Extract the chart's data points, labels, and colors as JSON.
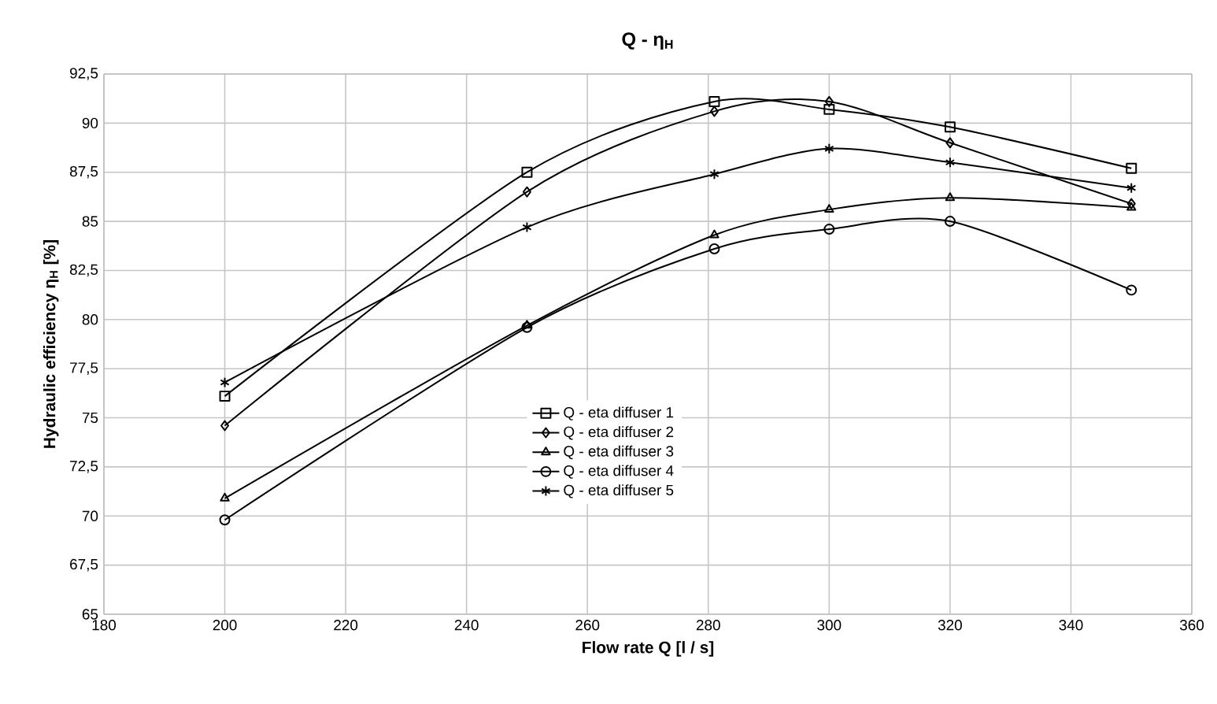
{
  "chart_data": {
    "type": "line",
    "title": "Q - η$_{H}$",
    "xlabel": "Flow rate Q  [l / s]",
    "ylabel": "Hydraulic efficiency η$_{H}$  [%]",
    "x": [
      200,
      250,
      281,
      300,
      320,
      350
    ],
    "series": [
      {
        "name": "Q - eta diffuser 1",
        "color": "#000000",
        "marker": "square",
        "values": [
          76.1,
          87.5,
          91.1,
          90.7,
          89.8,
          87.7
        ]
      },
      {
        "name": "Q - eta diffuser 2",
        "color": "#000000",
        "marker": "diamond",
        "values": [
          74.6,
          86.5,
          90.6,
          91.1,
          89.0,
          85.9
        ]
      },
      {
        "name": "Q - eta diffuser 3",
        "color": "#000000",
        "marker": "triangle",
        "values": [
          70.9,
          79.7,
          84.3,
          85.6,
          86.2,
          85.7
        ]
      },
      {
        "name": "Q - eta diffuser 4",
        "color": "#000000",
        "marker": "circle",
        "values": [
          69.8,
          79.6,
          83.6,
          84.6,
          85.0,
          81.5
        ]
      },
      {
        "name": "Q - eta diffuser 5",
        "color": "#000000",
        "marker": "cross",
        "values": [
          76.8,
          84.7,
          87.4,
          88.7,
          88.0,
          86.7
        ]
      }
    ],
    "xlim": [
      180,
      360
    ],
    "xticks": [
      180,
      200,
      220,
      240,
      260,
      280,
      300,
      320,
      340,
      360
    ],
    "ylim": [
      65,
      92.5
    ],
    "yticks": [
      65,
      {
        "value": 67.5,
        "label": "67,5"
      },
      70,
      {
        "value": 72.5,
        "label": "72,5"
      },
      75,
      {
        "value": 77.5,
        "label": "77,5"
      },
      80,
      {
        "value": 82.5,
        "label": "82,5"
      },
      85,
      {
        "value": 87.5,
        "label": "87,5"
      },
      90,
      {
        "value": 92.5,
        "label": "92,5"
      }
    ],
    "grid": true,
    "legend": "center",
    "line_style": "solid"
  }
}
